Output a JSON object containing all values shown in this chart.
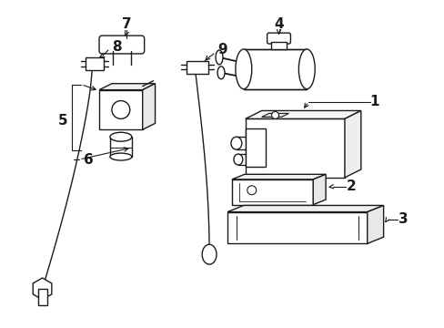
{
  "background_color": "#ffffff",
  "line_color": "#1a1a1a",
  "line_width": 1.0,
  "figsize": [
    4.89,
    3.6
  ],
  "dpi": 100
}
